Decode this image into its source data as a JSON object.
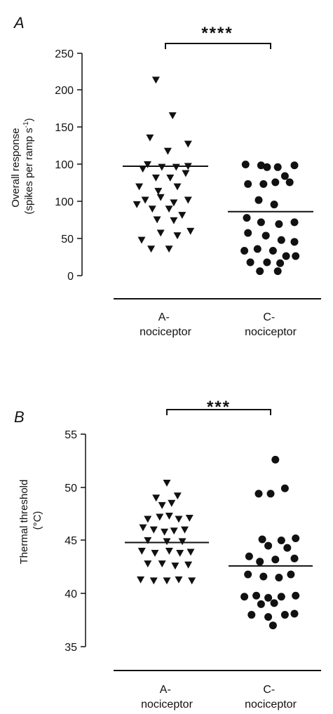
{
  "chart_data": [
    {
      "type": "scatter",
      "panel": "A",
      "ylabel_line1": "Overall response",
      "ylabel_line2_main": "(spikes per ramp s",
      "ylabel_line2_sup": "-1",
      "ylabel_line2_end": ")",
      "yticks": [
        "0",
        "50",
        "100",
        "100",
        "150",
        "200",
        "250"
      ],
      "ylim": [
        0,
        250
      ],
      "significance": "****",
      "categories": [
        {
          "line1": "A-",
          "line2": "nociceptor"
        },
        {
          "line1": "C-",
          "line2": "nociceptor"
        }
      ],
      "series": [
        {
          "marker": "triangle-down",
          "median": 123,
          "points": [
            {
              "x": -0.4,
              "y": 220
            },
            {
              "x": 0.3,
              "y": 180
            },
            {
              "x": -0.65,
              "y": 155
            },
            {
              "x": 0.1,
              "y": 140
            },
            {
              "x": 0.95,
              "y": 148
            },
            {
              "x": -0.95,
              "y": 120
            },
            {
              "x": -0.4,
              "y": 110
            },
            {
              "x": 0.2,
              "y": 110
            },
            {
              "x": 0.85,
              "y": 115
            },
            {
              "x": -1.1,
              "y": 100
            },
            {
              "x": -0.3,
              "y": 95
            },
            {
              "x": 0.5,
              "y": 100
            },
            {
              "x": -0.75,
              "y": 125
            },
            {
              "x": -0.15,
              "y": 122
            },
            {
              "x": 0.45,
              "y": 122
            },
            {
              "x": 0.95,
              "y": 123
            },
            {
              "x": -0.85,
              "y": 85
            },
            {
              "x": -0.2,
              "y": 88
            },
            {
              "x": 0.35,
              "y": 82
            },
            {
              "x": 0.95,
              "y": 85
            },
            {
              "x": -1.2,
              "y": 80
            },
            {
              "x": -0.55,
              "y": 75
            },
            {
              "x": 0.15,
              "y": 75
            },
            {
              "x": 0.7,
              "y": 68
            },
            {
              "x": -0.35,
              "y": 63
            },
            {
              "x": 0.35,
              "y": 62
            },
            {
              "x": -1.0,
              "y": 40
            },
            {
              "x": -0.2,
              "y": 48
            },
            {
              "x": 0.5,
              "y": 45
            },
            {
              "x": -0.6,
              "y": 30
            },
            {
              "x": 0.15,
              "y": 30
            },
            {
              "x": 1.05,
              "y": 50
            }
          ]
        },
        {
          "marker": "circle",
          "median": 72,
          "points": [
            {
              "x": -0.15,
              "y": 122
            },
            {
              "x": 0.6,
              "y": 112
            },
            {
              "x": -0.95,
              "y": 103
            },
            {
              "x": -0.3,
              "y": 103
            },
            {
              "x": -1.05,
              "y": 125
            },
            {
              "x": -0.4,
              "y": 124
            },
            {
              "x": 0.3,
              "y": 122
            },
            {
              "x": 1.0,
              "y": 124
            },
            {
              "x": 0.2,
              "y": 105
            },
            {
              "x": 0.8,
              "y": 105
            },
            {
              "x": -0.5,
              "y": 85
            },
            {
              "x": 0.15,
              "y": 80
            },
            {
              "x": -1.0,
              "y": 65
            },
            {
              "x": -0.4,
              "y": 60
            },
            {
              "x": 0.35,
              "y": 58
            },
            {
              "x": 1.0,
              "y": 60
            },
            {
              "x": -0.95,
              "y": 48
            },
            {
              "x": -0.2,
              "y": 45
            },
            {
              "x": 0.45,
              "y": 40
            },
            {
              "x": 1.0,
              "y": 38
            },
            {
              "x": -1.1,
              "y": 28
            },
            {
              "x": -0.55,
              "y": 30
            },
            {
              "x": 0.1,
              "y": 28
            },
            {
              "x": 0.65,
              "y": 22
            },
            {
              "x": 1.05,
              "y": 22
            },
            {
              "x": -0.85,
              "y": 15
            },
            {
              "x": -0.15,
              "y": 15
            },
            {
              "x": 0.4,
              "y": 14
            },
            {
              "x": -0.45,
              "y": 5
            },
            {
              "x": 0.3,
              "y": 5
            }
          ]
        }
      ]
    },
    {
      "type": "scatter",
      "panel": "B",
      "ylabel_line1": "Thermal threshold",
      "ylabel_line2_main": "(°C)",
      "yticks": [
        "35",
        "40",
        "45",
        "50",
        "55"
      ],
      "ylim": [
        35,
        55
      ],
      "significance": "***",
      "categories": [
        {
          "line1": "A-",
          "line2": "nociceptor"
        },
        {
          "line1": "C-",
          "line2": "nociceptor"
        }
      ],
      "series": [
        {
          "marker": "triangle-down",
          "median": 44.8,
          "points": [
            {
              "x": 0.0,
              "y": 50.4
            },
            {
              "x": -0.45,
              "y": 49.0
            },
            {
              "x": 0.45,
              "y": 49.2
            },
            {
              "x": -0.2,
              "y": 48.3
            },
            {
              "x": 0.2,
              "y": 48.5
            },
            {
              "x": -0.8,
              "y": 47.0
            },
            {
              "x": -0.3,
              "y": 47.2
            },
            {
              "x": 0.1,
              "y": 47.3
            },
            {
              "x": 0.5,
              "y": 47.0
            },
            {
              "x": 0.95,
              "y": 47.1
            },
            {
              "x": -1.0,
              "y": 46.2
            },
            {
              "x": -0.55,
              "y": 46.0
            },
            {
              "x": -0.1,
              "y": 45.8
            },
            {
              "x": 0.3,
              "y": 45.9
            },
            {
              "x": 0.75,
              "y": 46.0
            },
            {
              "x": -0.8,
              "y": 45.0
            },
            {
              "x": 0.0,
              "y": 44.9
            },
            {
              "x": 0.65,
              "y": 44.9
            },
            {
              "x": -1.05,
              "y": 44.0
            },
            {
              "x": -0.5,
              "y": 43.8
            },
            {
              "x": 0.1,
              "y": 44.0
            },
            {
              "x": 0.55,
              "y": 43.8
            },
            {
              "x": 1.0,
              "y": 43.9
            },
            {
              "x": -0.8,
              "y": 42.8
            },
            {
              "x": -0.2,
              "y": 42.8
            },
            {
              "x": 0.35,
              "y": 42.6
            },
            {
              "x": 0.9,
              "y": 42.7
            },
            {
              "x": -1.1,
              "y": 41.3
            },
            {
              "x": -0.55,
              "y": 41.2
            },
            {
              "x": 0.0,
              "y": 41.2
            },
            {
              "x": 0.5,
              "y": 41.3
            },
            {
              "x": 1.05,
              "y": 41.2
            }
          ]
        },
        {
          "marker": "circle",
          "median": 42.6,
          "points": [
            {
              "x": 0.2,
              "y": 52.6
            },
            {
              "x": -0.5,
              "y": 49.4
            },
            {
              "x": 0.0,
              "y": 49.4
            },
            {
              "x": 0.6,
              "y": 49.9
            },
            {
              "x": -0.35,
              "y": 45.1
            },
            {
              "x": 0.45,
              "y": 45.0
            },
            {
              "x": 1.05,
              "y": 45.2
            },
            {
              "x": -0.1,
              "y": 44.5
            },
            {
              "x": 0.7,
              "y": 44.3
            },
            {
              "x": -0.9,
              "y": 43.5
            },
            {
              "x": -0.45,
              "y": 43.0
            },
            {
              "x": 0.2,
              "y": 43.2
            },
            {
              "x": 1.0,
              "y": 43.3
            },
            {
              "x": -0.95,
              "y": 41.8
            },
            {
              "x": -0.3,
              "y": 41.6
            },
            {
              "x": 0.35,
              "y": 41.5
            },
            {
              "x": 0.85,
              "y": 41.8
            },
            {
              "x": -1.1,
              "y": 39.7
            },
            {
              "x": -0.6,
              "y": 39.8
            },
            {
              "x": -0.1,
              "y": 39.6
            },
            {
              "x": 0.45,
              "y": 39.7
            },
            {
              "x": 1.05,
              "y": 39.8
            },
            {
              "x": -0.4,
              "y": 39.0
            },
            {
              "x": 0.15,
              "y": 39.1
            },
            {
              "x": -0.8,
              "y": 38.0
            },
            {
              "x": -0.1,
              "y": 37.8
            },
            {
              "x": 0.6,
              "y": 38.0
            },
            {
              "x": 1.0,
              "y": 38.1
            },
            {
              "x": 0.1,
              "y": 37.0
            }
          ]
        }
      ]
    }
  ],
  "colors": {
    "ink": "#111111",
    "background": "#ffffff"
  }
}
